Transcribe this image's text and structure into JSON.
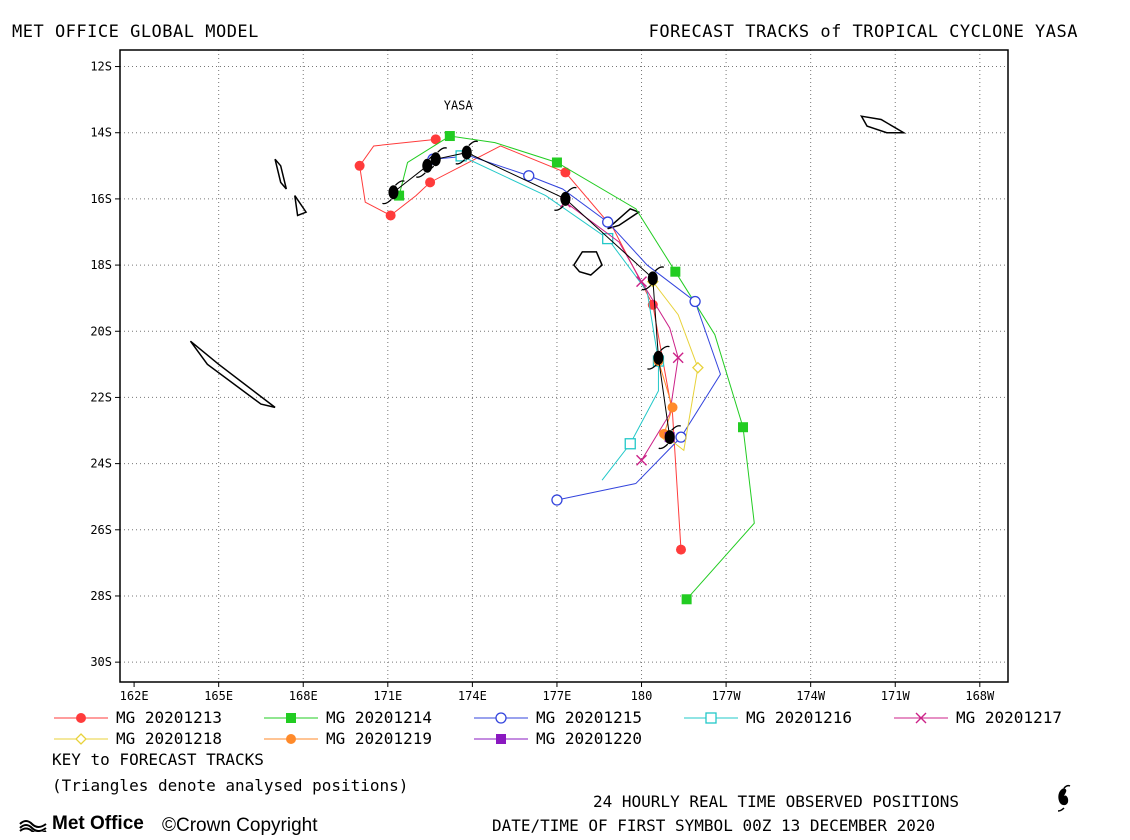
{
  "header": {
    "left_title": "MET OFFICE GLOBAL MODEL",
    "right_title": "FORECAST TRACKS of TROPICAL CYCLONE YASA"
  },
  "map": {
    "x_ticks": [
      "162E",
      "165E",
      "168E",
      "171E",
      "174E",
      "177E",
      "180",
      "177W",
      "174W",
      "171W",
      "168W"
    ],
    "y_ticks": [
      "12S",
      "14S",
      "16S",
      "18S",
      "20S",
      "22S",
      "24S",
      "26S",
      "28S",
      "30S"
    ],
    "storm_label": "YASA",
    "lon_range": [
      161.5,
      193.0
    ],
    "lat_range": [
      -30.6,
      -11.5
    ],
    "grid": "dotted"
  },
  "observed_track": [
    {
      "lon": 171.2,
      "lat": -15.8
    },
    {
      "lon": 172.4,
      "lat": -15.0
    },
    {
      "lon": 172.7,
      "lat": -14.8
    },
    {
      "lon": 173.8,
      "lat": -14.6
    },
    {
      "lon": 177.3,
      "lat": -16.0
    },
    {
      "lon": 180.4,
      "lat": -18.4
    },
    {
      "lon": 180.6,
      "lat": -20.8
    },
    {
      "lon": 181.0,
      "lat": -23.2
    }
  ],
  "tracks": [
    {
      "name": "MG 20201213",
      "color": "#ff3b3b",
      "marker": "filled-circle",
      "points": [
        [
          172.7,
          -14.2
        ],
        [
          170.5,
          -14.4
        ],
        [
          170.0,
          -15.0
        ],
        [
          170.2,
          -16.1
        ],
        [
          171.1,
          -16.5
        ],
        [
          172.0,
          -15.9
        ],
        [
          172.5,
          -15.5
        ],
        [
          175.0,
          -14.4
        ],
        [
          177.3,
          -15.2
        ],
        [
          179.0,
          -16.9
        ],
        [
          180.4,
          -19.2
        ],
        [
          181.1,
          -22.5
        ],
        [
          181.4,
          -26.6
        ]
      ]
    },
    {
      "name": "MG 20201214",
      "color": "#22cc22",
      "marker": "filled-square",
      "points": [
        [
          171.4,
          -15.9
        ],
        [
          171.7,
          -14.9
        ],
        [
          173.2,
          -14.1
        ],
        [
          174.8,
          -14.3
        ],
        [
          177.0,
          -14.9
        ],
        [
          179.8,
          -16.3
        ],
        [
          181.2,
          -18.2
        ],
        [
          182.6,
          -20.1
        ],
        [
          183.6,
          -22.9
        ],
        [
          184.0,
          -25.8
        ],
        [
          181.6,
          -28.1
        ]
      ]
    },
    {
      "name": "MG 20201215",
      "color": "#3344dd",
      "marker": "open-circle",
      "points": [
        [
          172.6,
          -14.8
        ],
        [
          173.9,
          -14.7
        ],
        [
          176.0,
          -15.3
        ],
        [
          177.2,
          -15.7
        ],
        [
          178.8,
          -16.7
        ],
        [
          180.2,
          -18.0
        ],
        [
          181.9,
          -19.1
        ],
        [
          182.8,
          -21.3
        ],
        [
          181.4,
          -23.2
        ],
        [
          179.8,
          -24.6
        ],
        [
          177.0,
          -25.1
        ]
      ]
    },
    {
      "name": "MG 20201216",
      "color": "#22c8c8",
      "marker": "open-square",
      "points": [
        [
          173.6,
          -14.7
        ],
        [
          176.6,
          -15.9
        ],
        [
          178.8,
          -17.2
        ],
        [
          180.2,
          -18.8
        ],
        [
          180.6,
          -20.9
        ],
        [
          180.6,
          -21.8
        ],
        [
          179.6,
          -23.4
        ],
        [
          178.6,
          -24.5
        ]
      ]
    },
    {
      "name": "MG 20201217",
      "color": "#cc2288",
      "marker": "cross",
      "points": [
        [
          177.3,
          -16.1
        ],
        [
          179.2,
          -17.3
        ],
        [
          180.0,
          -18.5
        ],
        [
          181.0,
          -19.9
        ],
        [
          181.3,
          -20.8
        ],
        [
          181.0,
          -22.5
        ],
        [
          180.0,
          -23.9
        ]
      ]
    },
    {
      "name": "MG 20201218",
      "color": "#e8d23a",
      "marker": "open-diamond",
      "points": [
        [
          180.4,
          -18.5
        ],
        [
          181.3,
          -19.5
        ],
        [
          182.0,
          -21.1
        ],
        [
          181.5,
          -23.6
        ],
        [
          180.9,
          -23.2
        ]
      ]
    },
    {
      "name": "MG 20201219",
      "color": "#ff8a2a",
      "marker": "filled-circle",
      "points": [
        [
          180.6,
          -20.9
        ],
        [
          181.1,
          -22.3
        ],
        [
          180.8,
          -23.1
        ]
      ]
    },
    {
      "name": "MG 20201220",
      "color": "#8a18c0",
      "marker": "filled-square",
      "points": [
        [
          181.0,
          -23.2
        ]
      ]
    }
  ],
  "land": [
    {
      "name": "fiji-viti-levu",
      "points": [
        [
          177.6,
          -18.0
        ],
        [
          177.9,
          -17.6
        ],
        [
          178.4,
          -17.6
        ],
        [
          178.6,
          -18.0
        ],
        [
          178.2,
          -18.3
        ],
        [
          177.8,
          -18.2
        ]
      ]
    },
    {
      "name": "fiji-vanua-levu",
      "points": [
        [
          178.8,
          -16.9
        ],
        [
          179.6,
          -16.3
        ],
        [
          179.9,
          -16.4
        ],
        [
          179.2,
          -16.8
        ]
      ]
    },
    {
      "name": "vanuatu-north",
      "points": [
        [
          167.0,
          -14.8
        ],
        [
          167.2,
          -15.5
        ],
        [
          167.4,
          -15.7
        ],
        [
          167.2,
          -15.0
        ]
      ]
    },
    {
      "name": "vanuatu-south",
      "points": [
        [
          167.7,
          -15.9
        ],
        [
          168.1,
          -16.4
        ],
        [
          167.8,
          -16.5
        ]
      ]
    },
    {
      "name": "new-caledonia",
      "points": [
        [
          164.0,
          -20.3
        ],
        [
          165.0,
          -21.0
        ],
        [
          167.0,
          -22.3
        ],
        [
          166.5,
          -22.2
        ],
        [
          164.6,
          -21.0
        ]
      ]
    },
    {
      "name": "samoa",
      "points": [
        [
          187.8,
          -13.5
        ],
        [
          188.5,
          -13.6
        ],
        [
          189.3,
          -14.0
        ],
        [
          188.7,
          -14.0
        ],
        [
          188.0,
          -13.8
        ]
      ]
    }
  ],
  "legend": {
    "key_title": "KEY to FORECAST TRACKS",
    "key_note": "(Triangles denote analysed positions)"
  },
  "footer": {
    "observed_label": "24 HOURLY REAL TIME OBSERVED POSITIONS",
    "datetime": "DATE/TIME OF FIRST SYMBOL 00Z 13 DECEMBER 2020",
    "logo": "Met Office",
    "copyright": "©Crown Copyright"
  }
}
